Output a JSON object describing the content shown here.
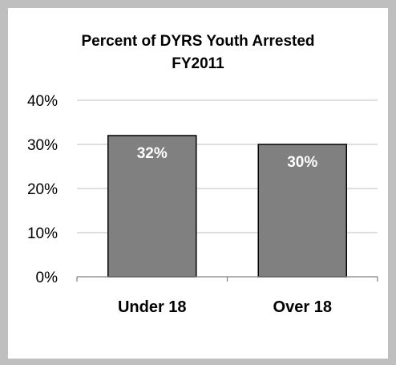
{
  "chart_data": {
    "type": "bar",
    "title": "Percent of DYRS Youth Arrested",
    "subtitle": "FY2011",
    "categories": [
      "Under 18",
      "Over 18"
    ],
    "values": [
      32,
      30
    ],
    "data_labels": [
      "32%",
      "30%"
    ],
    "ylim": [
      0,
      40
    ],
    "yticks": [
      0,
      10,
      20,
      30,
      40
    ],
    "ytick_labels": [
      "0%",
      "10%",
      "20%",
      "30%",
      "40%"
    ],
    "xlabel": "",
    "ylabel": "",
    "grid": true,
    "legend": "none",
    "colors": {
      "bar_fill": "#808080",
      "bar_stroke": "#000000",
      "gridline": "#bfbfbf",
      "axis": "#808080",
      "background": "#ffffff",
      "border": "#bfbfbf",
      "label_text": "#ffffff"
    }
  }
}
